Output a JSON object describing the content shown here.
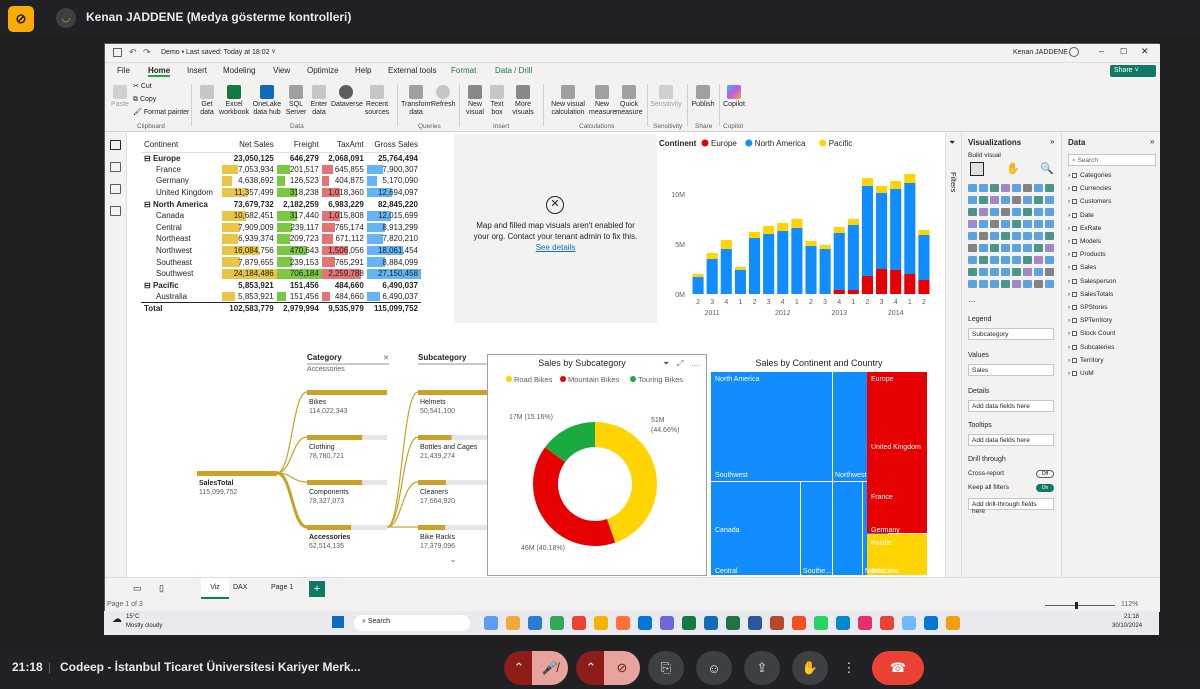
{
  "meet": {
    "presenter": "Kenan JADDENE (Medya gösterme kontrolleri)",
    "time": "21:18",
    "meeting_name": "Codeep - İstanbul Ticaret Üniversitesi Kariyer Merk..."
  },
  "window": {
    "file": "Demo • Last saved: Today at 18:02 ˅",
    "user": "Kenan JADDENE",
    "share": "Share"
  },
  "menu": [
    "File",
    "Home",
    "Insert",
    "Modeling",
    "View",
    "Optimize",
    "Help",
    "External tools",
    "Format",
    "Data / Drill"
  ],
  "ribbon": {
    "clipboard": {
      "paste": "Paste",
      "cut": "Cut",
      "copy": "Copy",
      "format_painter": "Format painter",
      "group": "Clipboard"
    },
    "data": {
      "items": [
        "Get data",
        "Excel workbook",
        "OneLake data hub",
        "SQL Server",
        "Enter data",
        "Dataverse",
        "Recent sources"
      ],
      "group": "Data"
    },
    "queries": {
      "items": [
        "Transform data",
        "Refresh"
      ],
      "group": "Queries"
    },
    "insert": {
      "items": [
        "New visual",
        "Text box",
        "More visuals"
      ],
      "group": "Insert"
    },
    "calc": {
      "items": [
        "New visual calculation",
        "New measure",
        "Quick measure"
      ],
      "group": "Calculations"
    },
    "sens": {
      "items": [
        "Sensitivity"
      ],
      "group": "Sensitivity"
    },
    "share": {
      "items": [
        "Publish"
      ],
      "group": "Share"
    },
    "copilot": {
      "items": [
        "Copilot"
      ],
      "group": "Copilot"
    }
  },
  "matrix": {
    "headers": [
      "Continent",
      "Net Sales",
      "Freight",
      "TaxAmt",
      "Gross Sales"
    ],
    "rows": [
      {
        "name": "Europe",
        "type": "group",
        "v": [
          "23,050,125",
          "646,279",
          "2,068,091",
          "25,764,494"
        ]
      },
      {
        "name": "France",
        "type": "child",
        "v": [
          "7,053,934",
          "201,517",
          "645,855",
          "7,900,307"
        ],
        "f": [
          0.3,
          0.29,
          0.25,
          0.29
        ]
      },
      {
        "name": "Germany",
        "type": "child",
        "v": [
          "4,638,692",
          "126,523",
          "404,875",
          "5,170,090"
        ],
        "f": [
          0.19,
          0.18,
          0.16,
          0.19
        ]
      },
      {
        "name": "United Kingdom",
        "type": "child",
        "v": [
          "11,357,499",
          "318,238",
          "1,018,360",
          "12,694,097"
        ],
        "f": [
          0.47,
          0.45,
          0.4,
          0.47
        ]
      },
      {
        "name": "North America",
        "type": "group",
        "v": [
          "73,679,732",
          "2,182,259",
          "6,983,229",
          "82,845,220"
        ]
      },
      {
        "name": "Canada",
        "type": "child",
        "v": [
          "10,682,451",
          "317,440",
          "1,015,808",
          "12,015,699"
        ],
        "f": [
          0.44,
          0.45,
          0.4,
          0.44
        ]
      },
      {
        "name": "Central",
        "type": "child",
        "v": [
          "7,909,009",
          "239,117",
          "765,174",
          "8,913,299"
        ],
        "f": [
          0.33,
          0.34,
          0.3,
          0.33
        ]
      },
      {
        "name": "Northeast",
        "type": "child",
        "v": [
          "6,939,374",
          "209,723",
          "671,112",
          "7,820,210"
        ],
        "f": [
          0.29,
          0.3,
          0.26,
          0.29
        ]
      },
      {
        "name": "Northwest",
        "type": "child",
        "v": [
          "16,084,756",
          "470,643",
          "1,506,056",
          "18,061,454"
        ],
        "f": [
          0.67,
          0.67,
          0.59,
          0.67
        ]
      },
      {
        "name": "Southeast",
        "type": "child",
        "v": [
          "7,879,655",
          "239,153",
          "765,291",
          "8,884,099"
        ],
        "f": [
          0.33,
          0.34,
          0.3,
          0.33
        ]
      },
      {
        "name": "Southwest",
        "type": "child",
        "v": [
          "24,184,486",
          "706,184",
          "2,259,788",
          "27,150,458"
        ],
        "f": [
          1,
          1,
          0.88,
          1
        ]
      },
      {
        "name": "Pacific",
        "type": "group",
        "v": [
          "5,853,921",
          "151,456",
          "484,660",
          "6,490,037"
        ]
      },
      {
        "name": "Australia",
        "type": "child",
        "v": [
          "5,853,921",
          "151,456",
          "484,660",
          "6,490,037"
        ],
        "f": [
          0.24,
          0.21,
          0.19,
          0.24
        ]
      },
      {
        "name": "Total",
        "type": "total",
        "v": [
          "102,583,779",
          "2,979,994",
          "9,535,979",
          "115,099,752"
        ]
      }
    ]
  },
  "map_error": {
    "text": "Map and filled map visuals aren't enabled for your org. Contact your tenant admin to fix this.",
    "link": "See details"
  },
  "chart_data": {
    "type": "bar",
    "stacked": true,
    "legend_title": "Continent",
    "categories": [
      "2",
      "3",
      "4",
      "1",
      "2",
      "3",
      "4",
      "1",
      "2",
      "3",
      "4",
      "1",
      "2",
      "3",
      "4",
      "1",
      "2"
    ],
    "year_labels": [
      "2011",
      "2012",
      "2013",
      "2014"
    ],
    "yticks": [
      "0M",
      "5M",
      "10M"
    ],
    "ylim": [
      0,
      13
    ],
    "series": [
      {
        "name": "Europe",
        "color": "#e60000",
        "values": [
          0,
          0,
          0,
          0,
          0,
          0,
          0,
          0,
          0,
          0,
          0.4,
          0.4,
          1.8,
          2.5,
          2.4,
          2.0,
          1.4
        ]
      },
      {
        "name": "North America",
        "color": "#118dff",
        "values": [
          1.7,
          3.5,
          4.5,
          2.4,
          5.6,
          6.0,
          6.3,
          6.6,
          4.8,
          4.5,
          5.7,
          6.5,
          9.0,
          7.6,
          8.1,
          9.1,
          4.5
        ]
      },
      {
        "name": "Pacific",
        "color": "#ffd400",
        "values": [
          0.3,
          0.6,
          0.9,
          0.3,
          0.6,
          0.8,
          0.8,
          0.9,
          0.5,
          0.4,
          0.6,
          0.6,
          0.8,
          0.7,
          0.8,
          0.9,
          0.5
        ]
      }
    ]
  },
  "decomp": {
    "root": {
      "label": "SalesTotal",
      "value": "115,099,752"
    },
    "cat_header": "Category",
    "cat_selected": "Accessories",
    "sub_header": "Subcategory",
    "categories": [
      {
        "name": "Bikes",
        "value": "114,022,343",
        "f": 1
      },
      {
        "name": "Clothing",
        "value": "78,780,721",
        "f": 0.69
      },
      {
        "name": "Components",
        "value": "78,327,073",
        "f": 0.69
      },
      {
        "name": "Accessories",
        "value": "62,514,135",
        "f": 0.55
      }
    ],
    "subcategories": [
      {
        "name": "Helmets",
        "value": "50,541,100",
        "f": 1
      },
      {
        "name": "Bottles and Cages",
        "value": "21,439,274",
        "f": 0.42
      },
      {
        "name": "Cleaners",
        "value": "17,664,920",
        "f": 0.35
      },
      {
        "name": "Bike Racks",
        "value": "17,379,096",
        "f": 0.34
      }
    ]
  },
  "donut": {
    "title": "Sales by Subcategory",
    "legend": [
      {
        "name": "Road Bikes",
        "color": "#ffd400"
      },
      {
        "name": "Mountain Bikes",
        "color": "#e60000"
      },
      {
        "name": "Touring Bikes",
        "color": "#1aab40"
      }
    ],
    "slices": [
      {
        "value": 51,
        "label": "51M",
        "pct": "(44.66%)",
        "color": "#ffd400"
      },
      {
        "value": 46,
        "label": "46M (40.18%)",
        "color": "#e60000"
      },
      {
        "value": 17,
        "label": "17M (15.16%)",
        "color": "#1aab40"
      }
    ]
  },
  "treemap": {
    "title": "Sales by Continent and Country",
    "labels": [
      "North America",
      "Southwest",
      "Northwest",
      "Canada",
      "Central",
      "Southe...",
      "North...",
      "Europe",
      "United Kingdom",
      "France",
      "Germany",
      "Pacific",
      "Australia"
    ]
  },
  "viz_pane": {
    "title": "Visualizations",
    "build": "Build visual",
    "legend_lbl": "Legend",
    "legend_val": "Subcategory",
    "values_lbl": "Values",
    "values_val": "Sales",
    "details": "Details",
    "add": "Add data fields here",
    "tooltips": "Tooltips",
    "drill": "Drill through",
    "cross": "Cross-report",
    "cross_state": "Off",
    "keep": "Keep all filters",
    "keep_state": "On",
    "drill_add": "Add drill-through fields here"
  },
  "filters": "Filters",
  "data_pane": {
    "title": "Data",
    "search": "Search",
    "fields": [
      "Categories",
      "Currencies",
      "Customers",
      "Date",
      "ExRate",
      "Models",
      "Products",
      "Sales",
      "Salesperson",
      "SalesTotals",
      "SPStores",
      "SPTerritory",
      "Stock Count",
      "Subcateries",
      "Territory",
      "UoM"
    ]
  },
  "tabs": [
    "Viz",
    "DAX",
    "Page 1"
  ],
  "status": {
    "page": "Page 1 of 3",
    "zoom": "112%"
  },
  "taskbar": {
    "weather": "15°C",
    "weather_desc": "Mostly cloudy",
    "search": "Search",
    "time": "21:18",
    "date": "30/10/2024"
  }
}
